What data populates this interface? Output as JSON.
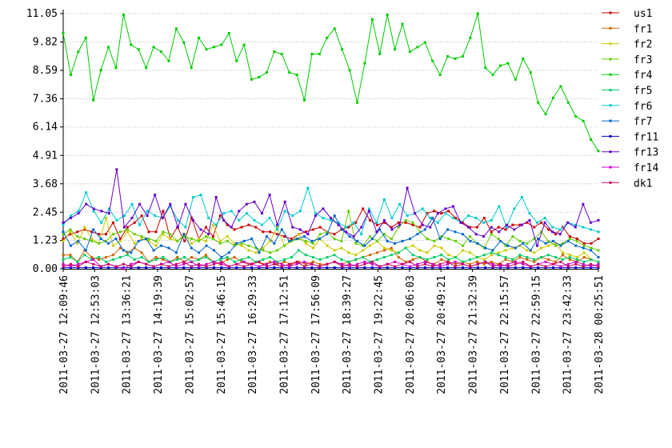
{
  "chart_data": {
    "type": "line",
    "title": "",
    "xlabel": "",
    "ylabel": "",
    "ylim": [
      0,
      11.05
    ],
    "grid": "horizontal-dashed",
    "legend_position": "top-right",
    "y_ticks": [
      "0.00",
      "1.23",
      "2.45",
      "3.68",
      "4.91",
      "6.14",
      "7.36",
      "8.59",
      "9.82",
      "11.05"
    ],
    "x_ticks": [
      "2011-03-27 12:09:46",
      "2011-03-27 12:53:03",
      "2011-03-27 13:36:21",
      "2011-03-27 14:19:39",
      "2011-03-27 15:02:57",
      "2011-03-27 15:46:15",
      "2011-03-27 16:29:33",
      "2011-03-27 17:12:51",
      "2011-03-27 17:56:09",
      "2011-03-27 18:39:27",
      "2011-03-27 19:22:45",
      "2011-03-27 20:06:03",
      "2011-03-27 20:49:21",
      "2011-03-27 21:32:39",
      "2011-03-27 22:15:57",
      "2011-03-27 22:59:15",
      "2011-03-27 23:42:33",
      "2011-03-28 00:25:51"
    ],
    "series": [
      {
        "name": "us1",
        "color": "#cc0000",
        "values": [
          1.3,
          1.5,
          1.6,
          1.7,
          1.6,
          1.5,
          1.5,
          2.0,
          1.3,
          1.8,
          2.0,
          2.3,
          1.6,
          1.6,
          2.5,
          1.3,
          1.8,
          1.2,
          2.2,
          1.3,
          1.8,
          1.4,
          2.3,
          1.9,
          1.7,
          1.8,
          1.9,
          1.8,
          1.6,
          1.6,
          1.5,
          1.4,
          1.3,
          1.5,
          1.6,
          1.7,
          1.8,
          1.6,
          1.5,
          1.7,
          1.8,
          2.0,
          2.6,
          2.1,
          1.9,
          2.0,
          1.8,
          2.0,
          2.0,
          1.9,
          1.8,
          2.4,
          2.5,
          2.4,
          2.5,
          2.2,
          2.0,
          1.8,
          1.8,
          2.2,
          1.6,
          1.8,
          1.7,
          1.9,
          1.9,
          2.0,
          1.8,
          2.0,
          1.7,
          1.5,
          1.8,
          1.4,
          1.3,
          1.1,
          1.1,
          1.3
        ]
      },
      {
        "name": "fr1",
        "color": "#cc6600",
        "values": [
          0.6,
          0.6,
          0.3,
          0.8,
          0.5,
          0.4,
          0.5,
          0.6,
          0.9,
          0.7,
          0.9,
          0.7,
          0.3,
          0.5,
          0.4,
          0.3,
          0.5,
          0.3,
          0.5,
          0.4,
          0.6,
          0.3,
          0.2,
          0.4,
          0.5,
          0.3,
          0.2,
          0.3,
          0.2,
          0.3,
          0.2,
          0.3,
          0.2,
          0.3,
          0.2,
          0.3,
          0.2,
          0.2,
          0.3,
          0.2,
          0.3,
          0.4,
          0.5,
          0.6,
          0.7,
          0.8,
          0.9,
          0.5,
          0.3,
          0.4,
          0.5,
          0.3,
          0.2,
          0.4,
          0.3,
          0.2,
          0.3,
          0.2,
          0.3,
          0.2,
          0.3,
          0.2,
          0.4,
          0.3,
          0.5,
          0.4,
          0.3,
          0.5,
          0.4,
          0.3,
          0.6,
          0.4,
          0.3,
          0.5,
          0.4,
          0.3
        ]
      },
      {
        "name": "fr2",
        "color": "#cccc00",
        "values": [
          1.2,
          1.6,
          1.1,
          1.8,
          1.3,
          1.1,
          2.2,
          1.0,
          1.2,
          1.6,
          1.1,
          1.3,
          1.2,
          1.0,
          1.5,
          1.3,
          1.2,
          1.5,
          1.1,
          1.3,
          1.2,
          1.9,
          1.2,
          1.4,
          1.1,
          1.0,
          0.8,
          0.7,
          0.9,
          1.2,
          1.8,
          1.0,
          1.2,
          1.5,
          1.1,
          0.9,
          1.3,
          1.0,
          0.8,
          0.9,
          0.7,
          0.6,
          0.8,
          1.0,
          1.2,
          0.9,
          0.8,
          0.7,
          0.9,
          1.0,
          0.8,
          0.7,
          1.0,
          0.9,
          0.6,
          0.5,
          0.8,
          0.7,
          0.5,
          0.4,
          0.6,
          0.7,
          0.8,
          0.9,
          1.0,
          0.8,
          0.7,
          0.9,
          1.0,
          1.1,
          0.7,
          0.6,
          0.5,
          0.7,
          0.4,
          0.3
        ]
      },
      {
        "name": "fr3",
        "color": "#66cc00",
        "values": [
          1.5,
          1.7,
          1.4,
          1.3,
          1.2,
          1.1,
          1.2,
          1.5,
          1.6,
          1.7,
          1.5,
          1.4,
          1.3,
          1.2,
          1.6,
          1.5,
          1.2,
          1.4,
          1.3,
          1.2,
          1.4,
          1.3,
          1.1,
          1.2,
          1.0,
          1.1,
          1.0,
          0.9,
          0.8,
          0.7,
          0.8,
          1.0,
          1.2,
          1.3,
          1.2,
          1.1,
          1.5,
          1.6,
          1.3,
          1.2,
          2.5,
          1.1,
          1.0,
          1.4,
          1.2,
          1.5,
          1.3,
          1.8,
          2.1,
          2.0,
          1.6,
          1.3,
          1.2,
          1.4,
          1.3,
          1.2,
          1.0,
          1.4,
          1.1,
          0.9,
          1.5,
          1.3,
          1.0,
          1.4,
          1.2,
          1.1,
          1.3,
          1.6,
          1.2,
          1.0,
          1.1,
          1.3,
          1.2,
          1.0,
          0.9,
          0.8
        ]
      },
      {
        "name": "fr4",
        "color": "#00cc00",
        "values": [
          10.2,
          8.4,
          9.4,
          10.0,
          7.3,
          8.6,
          9.6,
          8.7,
          11.0,
          9.7,
          9.5,
          8.7,
          9.6,
          9.4,
          9.0,
          10.4,
          9.8,
          8.7,
          10.0,
          9.5,
          9.6,
          9.7,
          10.2,
          9.0,
          9.7,
          8.2,
          8.3,
          8.5,
          9.4,
          9.3,
          8.5,
          8.4,
          7.3,
          9.3,
          9.3,
          10.0,
          10.4,
          9.5,
          8.6,
          7.2,
          8.9,
          10.8,
          9.3,
          11.0,
          9.5,
          10.6,
          9.4,
          9.6,
          9.8,
          9.0,
          8.4,
          9.2,
          9.1,
          9.2,
          10.0,
          11.05,
          8.7,
          8.4,
          8.8,
          8.9,
          8.2,
          9.1,
          8.5,
          7.2,
          6.7,
          7.4,
          7.9,
          7.2,
          6.6,
          6.4,
          5.6,
          5.1
        ]
      },
      {
        "name": "fr5",
        "color": "#00cc66",
        "values": [
          0.4,
          0.5,
          0.3,
          0.6,
          0.4,
          0.5,
          0.3,
          0.4,
          0.5,
          0.6,
          0.4,
          0.5,
          0.3,
          0.4,
          0.5,
          0.3,
          0.4,
          0.5,
          0.3,
          0.4,
          0.5,
          0.3,
          0.4,
          0.5,
          0.3,
          0.4,
          0.5,
          0.3,
          0.4,
          0.5,
          0.3,
          0.4,
          0.5,
          0.8,
          0.6,
          0.5,
          0.4,
          0.5,
          0.6,
          0.4,
          0.3,
          0.4,
          0.5,
          0.3,
          0.4,
          0.5,
          0.6,
          0.7,
          0.9,
          0.6,
          0.5,
          0.4,
          0.5,
          0.6,
          0.4,
          0.5,
          0.3,
          0.4,
          0.5,
          0.6,
          0.7,
          0.6,
          0.5,
          0.4,
          0.6,
          0.5,
          0.4,
          0.5,
          0.6,
          0.5,
          0.4,
          0.5,
          0.4,
          0.3,
          0.4,
          0.3
        ]
      },
      {
        "name": "fr6",
        "color": "#00cccc",
        "values": [
          1.9,
          2.3,
          2.5,
          3.3,
          2.5,
          2.0,
          2.6,
          2.1,
          2.3,
          2.8,
          1.9,
          2.5,
          2.3,
          2.2,
          2.7,
          2.1,
          1.8,
          3.1,
          3.2,
          2.2,
          1.9,
          2.4,
          2.5,
          2.1,
          2.4,
          2.1,
          1.9,
          2.2,
          1.7,
          2.5,
          2.3,
          2.5,
          3.5,
          2.4,
          2.2,
          2.1,
          2.0,
          1.8,
          2.0,
          1.5,
          2.6,
          2.0,
          3.0,
          2.2,
          2.8,
          2.3,
          2.4,
          2.6,
          2.2,
          2.0,
          2.4,
          2.2,
          2.0,
          2.3,
          2.2,
          2.0,
          2.1,
          2.7,
          1.8,
          2.6,
          3.1,
          2.4,
          2.0,
          2.2,
          1.8,
          1.7,
          2.0,
          1.9,
          1.8,
          1.7,
          1.6
        ]
      },
      {
        "name": "fr7",
        "color": "#0066cc",
        "values": [
          1.6,
          1.0,
          1.2,
          0.8,
          1.7,
          1.3,
          1.1,
          1.3,
          0.8,
          0.7,
          1.2,
          1.3,
          0.8,
          1.0,
          0.9,
          0.7,
          1.5,
          0.9,
          0.7,
          1.0,
          0.8,
          0.5,
          0.7,
          1.1,
          1.2,
          1.3,
          0.7,
          1.4,
          1.1,
          1.7,
          1.2,
          1.3,
          1.4,
          1.2,
          1.3,
          1.5,
          2.3,
          1.7,
          1.4,
          1.2,
          1.0,
          1.3,
          1.7,
          1.2,
          1.1,
          1.2,
          1.3,
          1.5,
          1.7,
          2.2,
          1.3,
          1.7,
          1.6,
          1.5,
          1.2,
          1.1,
          0.9,
          0.8,
          1.2,
          1.0,
          0.9,
          1.1,
          0.8,
          1.3,
          1.1,
          1.2,
          1.0,
          1.2,
          1.0,
          0.9,
          0.8,
          0.5
        ]
      },
      {
        "name": "fr11",
        "color": "#0000cc",
        "values": [
          0.05,
          0.05,
          0.05,
          0.05,
          0.05,
          0.05,
          0.05,
          0.05,
          0.05,
          0.05,
          0.05,
          0.05,
          0.05,
          0.05,
          0.05,
          0.05,
          0.05,
          0.05,
          0.05,
          0.05,
          0.05,
          0.05,
          0.05,
          0.05,
          0.05,
          0.05,
          0.05,
          0.05,
          0.05,
          0.05,
          0.05,
          0.05,
          0.05,
          0.05,
          0.05,
          0.05,
          0.05,
          0.05,
          0.05,
          0.05,
          0.05,
          0.05,
          0.05,
          0.05,
          0.05,
          0.05,
          0.05,
          0.05,
          0.05,
          0.05,
          0.05,
          0.05,
          0.05,
          0.05,
          0.05,
          0.05,
          0.05,
          0.05,
          0.05,
          0.05,
          0.05,
          0.05,
          0.05,
          0.05,
          0.05,
          0.05,
          0.05,
          0.05,
          0.05,
          0.05,
          0.05,
          0.05
        ]
      },
      {
        "name": "fr13",
        "color": "#6600cc",
        "values": [
          2.0,
          2.2,
          2.4,
          2.8,
          2.6,
          2.5,
          2.4,
          4.3,
          1.8,
          2.2,
          2.8,
          2.3,
          3.2,
          2.2,
          2.8,
          1.8,
          2.8,
          2.1,
          1.7,
          1.5,
          3.1,
          2.1,
          1.8,
          2.5,
          2.8,
          2.9,
          2.4,
          3.2,
          1.9,
          2.9,
          1.8,
          1.7,
          1.5,
          2.3,
          2.6,
          2.2,
          1.9,
          1.6,
          1.4,
          1.8,
          2.5,
          1.6,
          2.1,
          1.7,
          1.9,
          3.5,
          2.4,
          1.9,
          1.8,
          2.4,
          2.6,
          2.7,
          2.0,
          1.8,
          1.5,
          1.4,
          1.8,
          1.6,
          1.9,
          1.7,
          1.9,
          2.1,
          1.0,
          2.0,
          1.6,
          1.5,
          2.0,
          1.8,
          2.8,
          2.0,
          2.1
        ]
      },
      {
        "name": "fr14",
        "color": "#cc00cc",
        "values": [
          0.2,
          0.1,
          0.2,
          0.3,
          0.4,
          0.1,
          0.2,
          0.1,
          0.0,
          0.2,
          0.3,
          0.2,
          0.1,
          0.2,
          0.3,
          0.1,
          0.2,
          0.3,
          0.1,
          0.2,
          0.3,
          0.2,
          0.1,
          0.2,
          0.3,
          0.2,
          0.1,
          0.2,
          0.3,
          0.2,
          0.1,
          0.2,
          0.3,
          0.2,
          0.1,
          0.2,
          0.3,
          0.2,
          0.1,
          0.2,
          0.3,
          0.2,
          0.1,
          0.2,
          0.3,
          0.2,
          0.1,
          0.2,
          0.3,
          0.2,
          0.1,
          0.2,
          0.3,
          0.2,
          0.1,
          0.2,
          0.3,
          0.2,
          0.1,
          0.2,
          0.3,
          0.2,
          0.1,
          0.2,
          0.3,
          0.2,
          0.1,
          0.2,
          0.3,
          0.2,
          0.1,
          0.2
        ]
      },
      {
        "name": "dk1",
        "color": "#cc0066",
        "values": [
          0.1,
          0.2,
          0.1,
          0.3,
          0.2,
          0.1,
          0.2,
          0.1,
          0.2,
          0.1,
          0.3,
          0.2,
          0.1,
          0.2,
          0.1,
          0.2,
          0.3,
          0.1,
          0.2,
          0.1,
          0.2,
          0.3,
          0.1,
          0.2,
          0.1,
          0.2,
          0.3,
          0.1,
          0.2,
          0.1,
          0.2,
          0.3,
          0.1,
          0.2,
          0.1,
          0.2,
          0.3,
          0.1,
          0.2,
          0.1,
          0.2,
          0.3,
          0.1,
          0.2,
          0.1,
          0.2,
          0.3,
          0.1,
          0.2,
          0.1,
          0.2,
          0.3,
          0.1,
          0.2,
          0.1,
          0.2,
          0.3,
          0.1,
          0.2,
          0.1,
          0.2,
          0.3,
          0.1,
          0.2,
          0.1,
          0.2,
          0.3,
          0.1,
          0.2,
          0.1,
          0.2,
          0.1
        ]
      }
    ]
  }
}
